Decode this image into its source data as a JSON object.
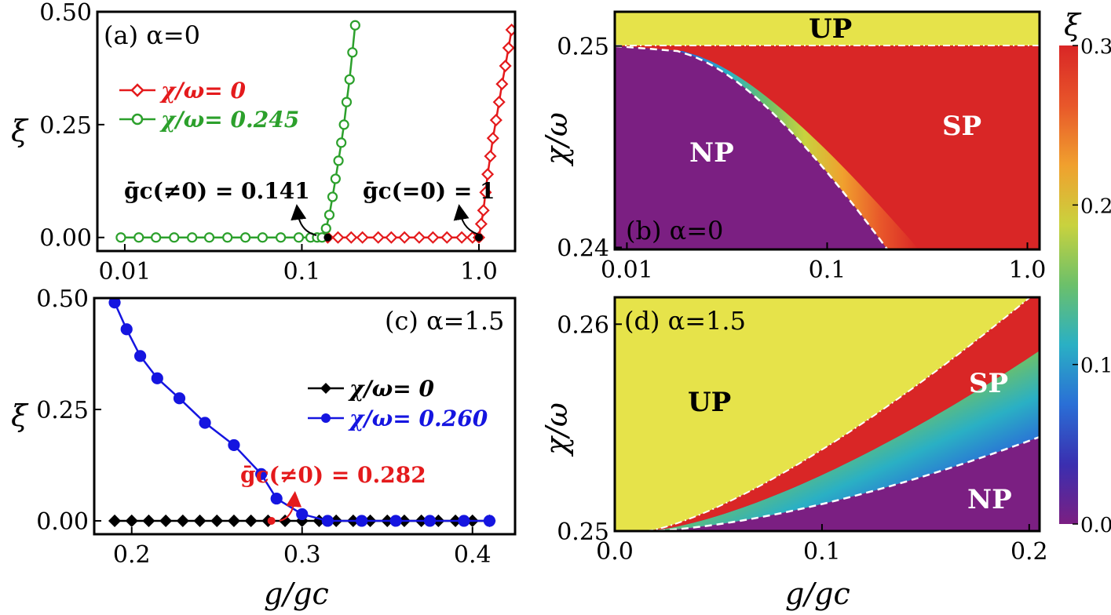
{
  "chart_data": [
    {
      "id": "a",
      "type": "line",
      "panel_label": "(a) α=0",
      "xscale": "log",
      "xlim": [
        0.007,
        1.6
      ],
      "ylim": [
        -0.03,
        0.5
      ],
      "xticks": [
        0.01,
        0.1,
        1.0
      ],
      "xtick_labels": [
        "0.01",
        "0.1",
        "1.0"
      ],
      "yticks": [
        0,
        0.25,
        0.5
      ],
      "ytick_labels": [
        "0.00",
        "0.25",
        "0.50"
      ],
      "xlabel": "",
      "ylabel": "ξ",
      "legend_position": "upper-left",
      "series": [
        {
          "name": "χ/ω= 0",
          "color": "#e41a1c",
          "marker": "diamond-open",
          "x": [
            0.14,
            0.16,
            0.19,
            0.22,
            0.27,
            0.32,
            0.38,
            0.46,
            0.55,
            0.66,
            0.8,
            0.92,
            1.0,
            1.03,
            1.06,
            1.09,
            1.12,
            1.16,
            1.2,
            1.25,
            1.3,
            1.35,
            1.41,
            1.47,
            1.53
          ],
          "y": [
            0,
            0,
            0,
            0,
            0,
            0,
            0,
            0,
            0,
            0,
            0,
            0,
            0,
            0.03,
            0.06,
            0.1,
            0.14,
            0.18,
            0.22,
            0.26,
            0.3,
            0.34,
            0.38,
            0.42,
            0.46
          ]
        },
        {
          "name": "χ/ω= 0.245",
          "color": "#2ca02c",
          "marker": "circle-open",
          "x": [
            0.0095,
            0.012,
            0.015,
            0.019,
            0.024,
            0.03,
            0.038,
            0.048,
            0.06,
            0.076,
            0.096,
            0.112,
            0.122,
            0.13,
            0.137,
            0.143,
            0.149,
            0.155,
            0.161,
            0.167,
            0.173,
            0.179,
            0.186,
            0.193,
            0.2
          ],
          "y": [
            0,
            0,
            0,
            0,
            0,
            0,
            0,
            0,
            0,
            0,
            0,
            0,
            0,
            0,
            0.02,
            0.05,
            0.09,
            0.13,
            0.17,
            0.21,
            0.25,
            0.3,
            0.35,
            0.41,
            0.47
          ]
        }
      ],
      "critical_points": [
        {
          "label": "ḡc(≠0) = 0.141",
          "x": 0.14,
          "y": 0
        },
        {
          "label": "ḡc(=0) = 1",
          "x": 1.0,
          "y": 0
        }
      ]
    },
    {
      "id": "b",
      "type": "heatmap",
      "panel_label": "(b) α=0",
      "xscale": "log",
      "xlim": [
        0.0087,
        1.15
      ],
      "ylim": [
        0.2399,
        0.2517
      ],
      "xticks": [
        0.01,
        0.1,
        1.0
      ],
      "xtick_labels": [
        "0.01",
        "0.1",
        "1.0"
      ],
      "yticks": [
        0.24,
        0.25
      ],
      "ytick_labels": [
        "0.24",
        "0.25"
      ],
      "xlabel": "",
      "ylabel": "χ/ω",
      "regions": [
        {
          "name": "UP",
          "label": "UP",
          "color": "#e6e34a",
          "text_color": "#000000",
          "label_at": [
            0.095,
            0.2511
          ]
        },
        {
          "name": "NP",
          "label": "NP",
          "color": "#7b1f82",
          "text_color": "#ffffff",
          "label_at": [
            0.025,
            0.2445
          ]
        },
        {
          "name": "SP",
          "label": "SP",
          "color": "#d92626",
          "text_color": "#ffffff",
          "label_at": [
            0.52,
            0.2473
          ]
        }
      ],
      "boundary_dashed": {
        "chi_top": 0.25,
        "g_at_bottom": 0.2
      }
    },
    {
      "id": "c",
      "type": "line",
      "panel_label": "(c) α=1.5",
      "xscale": "linear",
      "xlim": [
        0.178,
        0.425
      ],
      "ylim": [
        -0.03,
        0.5
      ],
      "xticks": [
        0.2,
        0.3,
        0.4
      ],
      "xtick_labels": [
        "0.2",
        "0.3",
        "0.4"
      ],
      "yticks": [
        0,
        0.25,
        0.5
      ],
      "ytick_labels": [
        "0.00",
        "0.25",
        "0.50"
      ],
      "xlabel": "g/gc",
      "ylabel": "ξ",
      "legend_position": "center-right",
      "series": [
        {
          "name": "χ/ω= 0",
          "color": "#000000",
          "marker": "diamond-filled",
          "x": [
            0.19,
            0.2,
            0.21,
            0.22,
            0.23,
            0.24,
            0.25,
            0.26,
            0.27,
            0.28,
            0.29,
            0.3,
            0.31,
            0.32,
            0.33,
            0.34,
            0.35,
            0.36,
            0.37,
            0.38,
            0.39,
            0.4,
            0.41
          ],
          "y": [
            0,
            0,
            0,
            0,
            0,
            0,
            0,
            0,
            0,
            0,
            0,
            0,
            0,
            0,
            0,
            0,
            0,
            0,
            0,
            0,
            0,
            0,
            0
          ]
        },
        {
          "name": "χ/ω= 0.260",
          "color": "#1515e0",
          "marker": "circle-filled",
          "x": [
            0.19,
            0.197,
            0.205,
            0.215,
            0.228,
            0.243,
            0.26,
            0.276,
            0.285,
            0.3,
            0.315,
            0.335,
            0.355,
            0.375,
            0.395,
            0.41
          ],
          "y": [
            0.49,
            0.43,
            0.37,
            0.32,
            0.275,
            0.22,
            0.17,
            0.105,
            0.05,
            0.015,
            0,
            0,
            0,
            0,
            0,
            0
          ]
        }
      ],
      "critical_points": [
        {
          "label": "ḡc(≠0) = 0.282",
          "x": 0.282,
          "y": 0
        }
      ]
    },
    {
      "id": "d",
      "type": "heatmap",
      "panel_label": "(d) α=1.5",
      "xscale": "linear",
      "xlim": [
        0,
        0.205
      ],
      "ylim": [
        0.25,
        0.2613
      ],
      "xticks": [
        0.0,
        0.1,
        0.2
      ],
      "xtick_labels": [
        "0.0",
        "0.1",
        "0.2"
      ],
      "yticks": [
        0.25,
        0.26
      ],
      "ytick_labels": [
        "0.25",
        "0.26"
      ],
      "xlabel": "g/gc",
      "ylabel": "χ/ω",
      "regions": [
        {
          "name": "UP",
          "label": "UP",
          "color": "#e6e34a",
          "text_color": "#000000",
          "label_at": [
            0.035,
            0.2573
          ]
        },
        {
          "name": "SP",
          "label": "SP",
          "color": "#d92626",
          "text_color": "#ffffff",
          "label_at": [
            0.18,
            0.2566
          ]
        },
        {
          "name": "NP",
          "label": "NP",
          "color": "#7b1f82",
          "text_color": "#ffffff",
          "label_at": [
            0.181,
            0.2514
          ]
        }
      ]
    }
  ],
  "colorbar": {
    "title": "ξ",
    "min": 0.0,
    "max": 0.3,
    "ticks": [
      0.0,
      0.1,
      0.2,
      0.3
    ],
    "tick_labels": [
      "0.0",
      "0.1",
      "0.2",
      "0.3"
    ],
    "stops": [
      "#7b1f82",
      "#3a2fb0",
      "#2a6fd6",
      "#2ab0c4",
      "#6cc06a",
      "#c9d23e",
      "#f0a02e",
      "#e8572a",
      "#d92626"
    ]
  }
}
